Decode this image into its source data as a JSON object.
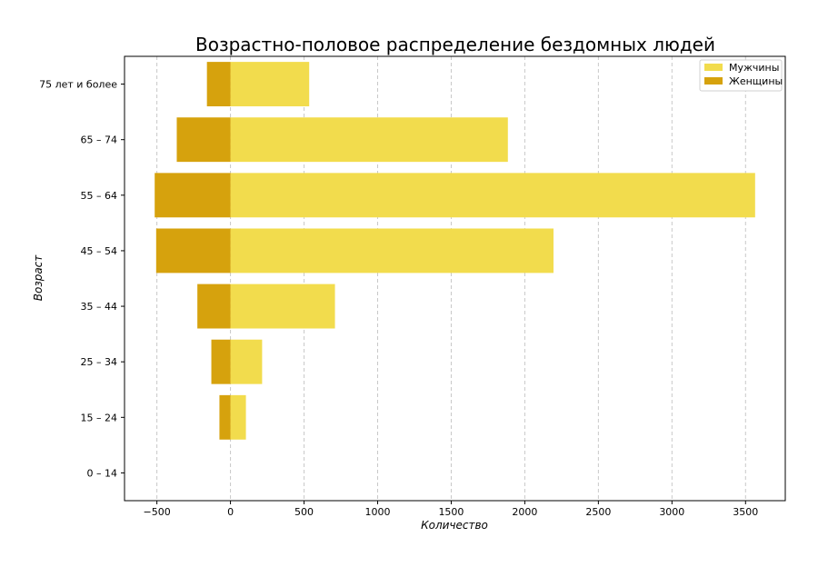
{
  "chart_data": {
    "type": "bar",
    "orientation": "horizontal",
    "title": "Возрастно-половое распределение бездомных людей",
    "xlabel": "Количество",
    "ylabel": "Возраст",
    "categories": [
      "0 – 14",
      "15 – 24",
      "25 – 34",
      "35 – 44",
      "45 – 54",
      "55 – 64",
      "65 – 74",
      "75 лет и более"
    ],
    "series": [
      {
        "name": "Мужчины",
        "color": "#f2dc4d",
        "values": [
          0,
          105,
          215,
          710,
          2195,
          3565,
          1885,
          535
        ]
      },
      {
        "name": "Женщины",
        "color": "#d6a20d",
        "values": [
          0,
          -75,
          -130,
          -225,
          -505,
          -515,
          -365,
          -160
        ]
      }
    ],
    "xticks": [
      -500,
      0,
      500,
      1000,
      1500,
      2000,
      2500,
      3000,
      3500
    ],
    "xtick_labels": [
      "−500",
      "0",
      "500",
      "1000",
      "1500",
      "2000",
      "2500",
      "3000",
      "3500"
    ],
    "xlim": [
      -720,
      3770
    ],
    "ylim": [
      -0.5,
      7.5
    ],
    "grid": "x",
    "legend_position": "top-right"
  }
}
